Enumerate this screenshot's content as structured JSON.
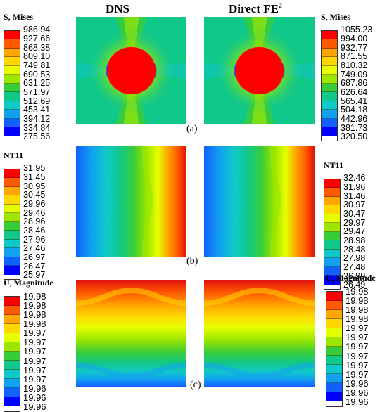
{
  "headers": {
    "left": "DNS",
    "right_main": "Direct FE",
    "right_sup": "2"
  },
  "sublabels": {
    "a": "(a)",
    "b": "(b)",
    "c": "(c)"
  },
  "colorscale": [
    "#ff0000",
    "#ff5a00",
    "#ffa500",
    "#ffd700",
    "#e6ff00",
    "#9ce600",
    "#39cc39",
    "#10c88a",
    "#0fc8c8",
    "#12a0f0",
    "#1260ff",
    "#0000ff"
  ],
  "legends": {
    "a_left": {
      "title": "S, Mises",
      "ticks": [
        "986.94",
        "927.66",
        "868.38",
        "809.10",
        "749.81",
        "690.53",
        "631.25",
        "571.97",
        "512.69",
        "453.41",
        "394.12",
        "334.84",
        "275.56"
      ]
    },
    "a_right": {
      "title": "S, Mises",
      "ticks": [
        "1055.23",
        "994.00",
        "932.77",
        "871.55",
        "810.32",
        "749.09",
        "687.86",
        "626.64",
        "565.41",
        "504.18",
        "442.96",
        "381.73",
        "320.50"
      ]
    },
    "b_left": {
      "title": "NT11",
      "ticks": [
        "31.95",
        "31.45",
        "30.95",
        "30.45",
        "29.96",
        "29.46",
        "28.96",
        "28.46",
        "27.96",
        "27.46",
        "26.97",
        "26.47",
        "25.97"
      ]
    },
    "b_right": {
      "title": "NT11",
      "ticks": [
        "32.46",
        "31.96",
        "31.46",
        "30.97",
        "30.47",
        "29.97",
        "29.47",
        "28.98",
        "28.48",
        "27.98",
        "27.48",
        "26.99",
        "26.49"
      ]
    },
    "c_left": {
      "title": "U, Magnitude",
      "ticks": [
        "19.98",
        "19.98",
        "19.98",
        "19.98",
        "19.97",
        "19.97",
        "19.97",
        "19.97",
        "19.97",
        "19.97",
        "19.96",
        "19.96",
        "19.96"
      ]
    },
    "c_right": {
      "title": "U, Magnitude",
      "ticks": [
        "19.98",
        "19.98",
        "19.98",
        "19.98",
        "19.97",
        "19.97",
        "19.97",
        "19.97",
        "19.97",
        "19.97",
        "19.96",
        "19.96",
        "19.96"
      ]
    }
  }
}
